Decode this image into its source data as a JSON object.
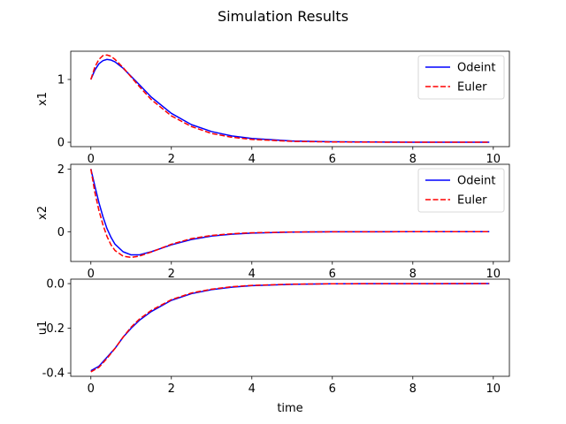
{
  "figure": {
    "title": "Simulation Results"
  },
  "chart_data": [
    {
      "type": "line",
      "title": "",
      "xlabel": "",
      "ylabel": "x1",
      "xlim": [
        -0.5,
        10.4
      ],
      "ylim": [
        -0.07,
        1.45
      ],
      "xticks": [
        0,
        2,
        4,
        6,
        8,
        10
      ],
      "yticks": [
        0,
        1
      ],
      "grid": false,
      "legend": "top-right",
      "series": [
        {
          "name": "Odeint",
          "color": "#0000ff",
          "dash": "solid",
          "x": [
            0,
            0.1,
            0.2,
            0.3,
            0.4,
            0.5,
            0.6,
            0.8,
            1.0,
            1.2,
            1.5,
            2.0,
            2.5,
            3.0,
            3.5,
            4.0,
            5.0,
            6.0,
            7.0,
            8.0,
            9.0,
            9.9
          ],
          "y": [
            1.0,
            1.15,
            1.25,
            1.3,
            1.32,
            1.31,
            1.28,
            1.18,
            1.05,
            0.92,
            0.72,
            0.46,
            0.28,
            0.17,
            0.1,
            0.06,
            0.02,
            0.008,
            0.003,
            0.001,
            0.0004,
            0.0002
          ]
        },
        {
          "name": "Euler",
          "color": "#ff0000",
          "dash": "dashed",
          "x": [
            0,
            0.1,
            0.2,
            0.3,
            0.4,
            0.5,
            0.6,
            0.8,
            1.0,
            1.2,
            1.5,
            2.0,
            2.5,
            3.0,
            3.5,
            4.0,
            5.0,
            6.0,
            7.0,
            8.0,
            9.0,
            9.9
          ],
          "y": [
            1.0,
            1.2,
            1.32,
            1.38,
            1.39,
            1.37,
            1.32,
            1.19,
            1.04,
            0.89,
            0.68,
            0.42,
            0.25,
            0.14,
            0.08,
            0.045,
            0.014,
            0.004,
            0.0015,
            0.0005,
            0.0002,
            0.0001
          ]
        }
      ]
    },
    {
      "type": "line",
      "title": "",
      "xlabel": "",
      "ylabel": "x2",
      "xlim": [
        -0.5,
        10.4
      ],
      "ylim": [
        -0.95,
        2.15
      ],
      "xticks": [
        0,
        2,
        4,
        6,
        8,
        10
      ],
      "yticks": [
        0,
        2
      ],
      "grid": false,
      "legend": "top-right",
      "series": [
        {
          "name": "Odeint",
          "color": "#0000ff",
          "dash": "solid",
          "x": [
            0,
            0.1,
            0.2,
            0.3,
            0.4,
            0.5,
            0.6,
            0.8,
            1.0,
            1.2,
            1.5,
            2.0,
            2.5,
            3.0,
            3.5,
            4.0,
            5.0,
            6.0,
            7.0,
            8.0,
            9.0,
            9.9
          ],
          "y": [
            2.0,
            1.45,
            0.93,
            0.48,
            0.1,
            -0.18,
            -0.4,
            -0.64,
            -0.74,
            -0.74,
            -0.64,
            -0.42,
            -0.25,
            -0.14,
            -0.08,
            -0.045,
            -0.014,
            -0.004,
            -0.0015,
            -0.0005,
            -0.0002,
            -0.0001
          ]
        },
        {
          "name": "Euler",
          "color": "#ff0000",
          "dash": "dashed",
          "x": [
            0,
            0.1,
            0.2,
            0.3,
            0.4,
            0.5,
            0.6,
            0.8,
            1.0,
            1.2,
            1.5,
            2.0,
            2.5,
            3.0,
            3.5,
            4.0,
            5.0,
            6.0,
            7.0,
            8.0,
            9.0,
            9.9
          ],
          "y": [
            2.0,
            1.25,
            0.68,
            0.22,
            -0.15,
            -0.42,
            -0.6,
            -0.78,
            -0.82,
            -0.78,
            -0.65,
            -0.4,
            -0.22,
            -0.12,
            -0.065,
            -0.035,
            -0.01,
            -0.003,
            -0.001,
            -0.0003,
            -0.0001,
            0.0
          ]
        }
      ]
    },
    {
      "type": "line",
      "title": "",
      "xlabel": "time",
      "ylabel": "u1",
      "xlim": [
        -0.5,
        10.4
      ],
      "ylim": [
        -0.415,
        0.02
      ],
      "xticks": [
        0,
        2,
        4,
        6,
        8,
        10
      ],
      "yticks": [
        -0.4,
        -0.2,
        0.0
      ],
      "grid": false,
      "legend": "none",
      "series": [
        {
          "name": "Odeint",
          "color": "#0000ff",
          "dash": "solid",
          "x": [
            0,
            0.2,
            0.4,
            0.6,
            0.8,
            1.0,
            1.2,
            1.5,
            2.0,
            2.5,
            3.0,
            3.5,
            4.0,
            5.0,
            6.0,
            7.0,
            8.0,
            9.0,
            9.9
          ],
          "y": [
            -0.39,
            -0.37,
            -0.33,
            -0.29,
            -0.24,
            -0.2,
            -0.165,
            -0.125,
            -0.075,
            -0.045,
            -0.027,
            -0.016,
            -0.009,
            -0.003,
            -0.001,
            -0.0004,
            -0.0002,
            -0.0001,
            0.0
          ]
        },
        {
          "name": "Euler",
          "color": "#ff0000",
          "dash": "dashed",
          "x": [
            0,
            0.2,
            0.4,
            0.6,
            0.8,
            1.0,
            1.2,
            1.5,
            2.0,
            2.5,
            3.0,
            3.5,
            4.0,
            5.0,
            6.0,
            7.0,
            8.0,
            9.0,
            9.9
          ],
          "y": [
            -0.395,
            -0.375,
            -0.335,
            -0.29,
            -0.24,
            -0.195,
            -0.16,
            -0.12,
            -0.072,
            -0.042,
            -0.025,
            -0.014,
            -0.008,
            -0.0025,
            -0.0008,
            -0.0003,
            -0.0001,
            0.0,
            0.0
          ]
        }
      ]
    }
  ]
}
